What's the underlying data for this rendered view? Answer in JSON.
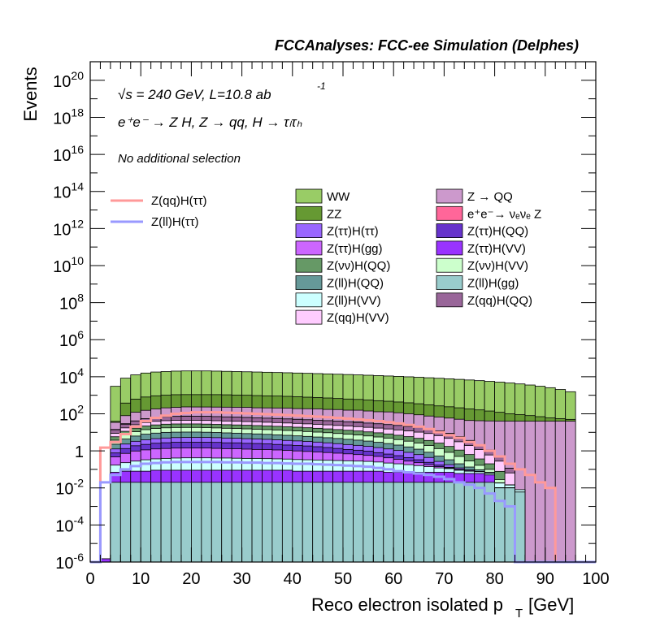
{
  "chart_data": {
    "type": "histogram",
    "title": "FCCAnalyses: FCC-ee Simulation (Delphes)",
    "annotations": {
      "energy": "√s = 240 GeV, L=10.8 ab",
      "energy_sup": "-1",
      "process": "e⁺e⁻ → Z H, Z → qq, H → τₗτₕ",
      "selection": "No additional selection"
    },
    "xlabel": "Reco electron isolated p",
    "xlabel_sub": "T",
    "xlabel_unit": "[GeV]",
    "ylabel": "Events",
    "xlim": [
      0,
      100
    ],
    "ylim": [
      1e-06,
      1e+21
    ],
    "yscale": "log",
    "x_ticks": [
      "0",
      "10",
      "20",
      "30",
      "40",
      "50",
      "60",
      "70",
      "80",
      "90",
      "100"
    ],
    "y_ticks": [
      {
        "base": "10",
        "exp": "20",
        "value": 1e+20
      },
      {
        "base": "10",
        "exp": "18",
        "value": 1e+18
      },
      {
        "base": "10",
        "exp": "16",
        "value": 1e+16
      },
      {
        "base": "10",
        "exp": "14",
        "value": 100000000000000.0
      },
      {
        "base": "10",
        "exp": "12",
        "value": 1000000000000.0
      },
      {
        "base": "10",
        "exp": "10",
        "value": 10000000000.0
      },
      {
        "base": "10",
        "exp": "8",
        "value": 100000000.0
      },
      {
        "base": "10",
        "exp": "6",
        "value": 1000000.0
      },
      {
        "base": "10",
        "exp": "4",
        "value": 10000.0
      },
      {
        "base": "10",
        "exp": "2",
        "value": 100.0
      },
      {
        "base": "1",
        "exp": "",
        "value": 1
      },
      {
        "base": "10",
        "exp": "-2",
        "value": 0.01
      },
      {
        "base": "10",
        "exp": "-4",
        "value": 0.0001
      },
      {
        "base": "10",
        "exp": "-6",
        "value": 1e-06
      }
    ],
    "legend_position": "top-right",
    "backgrounds": [
      {
        "name": "WW",
        "color": "#99cc66"
      },
      {
        "name": "Z → QQ",
        "color": "#cc99cc"
      },
      {
        "name": "ZZ",
        "color": "#669933"
      },
      {
        "name": "e⁺e⁻→ νₑνₑ Z",
        "color": "#ff6699"
      },
      {
        "name": "Z(ττ)H(ττ)",
        "color": "#9966ff"
      },
      {
        "name": "Z(ττ)H(QQ)",
        "color": "#6633cc"
      },
      {
        "name": "Z(ττ)H(gg)",
        "color": "#cc66ff"
      },
      {
        "name": "Z(ττ)H(VV)",
        "color": "#9933ff"
      },
      {
        "name": "Z(νν)H(QQ)",
        "color": "#669966"
      },
      {
        "name": "Z(νν)H(VV)",
        "color": "#ccffcc"
      },
      {
        "name": "Z(ll)H(QQ)",
        "color": "#669999"
      },
      {
        "name": "Z(ll)H(gg)",
        "color": "#99cccc"
      },
      {
        "name": "Z(ll)H(VV)",
        "color": "#ccffff"
      },
      {
        "name": "Z(qq)H(QQ)",
        "color": "#996699"
      },
      {
        "name": "Z(qq)H(VV)",
        "color": "#ffccff"
      }
    ],
    "signals": [
      {
        "name": "Z(qq)H(ττ)",
        "color": "#ff9999"
      },
      {
        "name": "Z(ll)H(ττ)",
        "color": "#9999ff"
      }
    ],
    "bin_width": 2,
    "bin_edges_start": 0,
    "stacks": [
      {
        "name": "Z(ll)H(gg)",
        "color": "#99cccc",
        "values": [
          0,
          5e-07,
          0.02,
          0.02,
          0.02,
          0.02,
          0.02,
          0.02,
          0.02,
          0.02,
          0.02,
          0.02,
          0.02,
          0.02,
          0.02,
          0.02,
          0.02,
          0.02,
          0.02,
          0.02,
          0.02,
          0.02,
          0.02,
          0.02,
          0.02,
          0.02,
          0.02,
          0.02,
          0.02,
          0.02,
          0.02,
          0.02,
          0.02,
          0.02,
          0.02,
          0.02,
          0.02,
          0.02,
          0.02,
          0.02,
          0.01,
          0.01,
          0.006,
          0,
          0,
          0,
          0,
          0,
          0,
          0
        ]
      },
      {
        "name": "Z(ττ)H(VV)",
        "color": "#9933ff",
        "values": [
          0,
          1e-06,
          0.05,
          0.06,
          0.06,
          0.06,
          0.07,
          0.07,
          0.07,
          0.07,
          0.07,
          0.07,
          0.07,
          0.07,
          0.07,
          0.07,
          0.07,
          0.07,
          0.07,
          0.07,
          0.06,
          0.06,
          0.06,
          0.06,
          0.06,
          0.06,
          0.06,
          0.06,
          0.06,
          0.05,
          0.05,
          0.05,
          0.05,
          0.05,
          0.05,
          0.05,
          0.04,
          0.04,
          0.04,
          0.03,
          0.0003,
          0.0003,
          0,
          0,
          0,
          0,
          0,
          0,
          0,
          0
        ]
      },
      {
        "name": "Z(ll)H(VV)",
        "color": "#ccffff",
        "values": [
          0,
          0,
          0.1,
          0.15,
          0.2,
          0.25,
          0.28,
          0.3,
          0.32,
          0.33,
          0.33,
          0.33,
          0.32,
          0.32,
          0.31,
          0.3,
          0.3,
          0.29,
          0.28,
          0.27,
          0.26,
          0.25,
          0.24,
          0.23,
          0.22,
          0.21,
          0.2,
          0.19,
          0.17,
          0.15,
          0.13,
          0.11,
          0.09,
          0.07,
          0.05,
          0.04,
          0.03,
          0.02,
          0.015,
          0.01,
          0.008,
          0.004,
          0.002,
          0,
          0,
          0,
          0,
          0,
          0,
          0
        ]
      },
      {
        "name": "Z(ττ)H(gg)",
        "color": "#cc66ff",
        "values": [
          0,
          0,
          0.3,
          0.5,
          0.7,
          0.8,
          0.9,
          0.95,
          1.0,
          1.0,
          1.0,
          1.0,
          0.95,
          0.9,
          0.9,
          0.85,
          0.8,
          0.8,
          0.75,
          0.7,
          0.65,
          0.6,
          0.55,
          0.5,
          0.45,
          0.4,
          0.35,
          0.3,
          0.25,
          0.2,
          0.15,
          0.1,
          0.07,
          0.04,
          0.02,
          0.01,
          0.005,
          0.002,
          0.001,
          0,
          0,
          0,
          0,
          0,
          0,
          0,
          0,
          0,
          0,
          0
        ]
      },
      {
        "name": "Z(ττ)H(QQ)",
        "color": "#6633cc",
        "values": [
          0,
          0,
          0.3,
          0.6,
          0.9,
          1.1,
          1.3,
          1.4,
          1.5,
          1.5,
          1.5,
          1.5,
          1.5,
          1.4,
          1.4,
          1.3,
          1.3,
          1.2,
          1.1,
          1.0,
          0.95,
          0.9,
          0.8,
          0.7,
          0.6,
          0.5,
          0.45,
          0.4,
          0.3,
          0.25,
          0.2,
          0.15,
          0.1,
          0.06,
          0.03,
          0.01,
          0.005,
          0.002,
          0,
          0,
          0,
          0,
          0,
          0,
          0,
          0,
          0,
          0,
          0,
          0
        ]
      },
      {
        "name": "Z(ττ)H(ττ)",
        "color": "#9966ff",
        "values": [
          0,
          0,
          0.5,
          1.0,
          1.4,
          1.7,
          2.0,
          2.2,
          2.3,
          2.4,
          2.4,
          2.4,
          2.3,
          2.2,
          2.1,
          2.0,
          1.9,
          1.8,
          1.7,
          1.6,
          1.5,
          1.4,
          1.3,
          1.2,
          1.1,
          1.0,
          0.9,
          0.8,
          0.7,
          0.6,
          0.5,
          0.4,
          0.3,
          0.2,
          0.1,
          0.05,
          0.02,
          0.01,
          0,
          0,
          0,
          0,
          0,
          0,
          0,
          0,
          0,
          0,
          0,
          0
        ]
      },
      {
        "name": "Z(ll)H(QQ)",
        "color": "#669999",
        "values": [
          0,
          0,
          1.0,
          2.0,
          3.0,
          4.0,
          4.5,
          5.0,
          5.0,
          5.0,
          5.0,
          4.8,
          4.6,
          4.4,
          4.2,
          4.0,
          3.8,
          3.6,
          3.4,
          3.2,
          3.0,
          2.8,
          2.6,
          2.4,
          2.2,
          2.0,
          1.8,
          1.6,
          1.4,
          1.2,
          1.0,
          0.8,
          0.6,
          0.4,
          0.25,
          0.15,
          0.08,
          0.04,
          0.02,
          0.01,
          0,
          0,
          0,
          0,
          0,
          0,
          0,
          0,
          0,
          0
        ]
      },
      {
        "name": "Z(νν)H(VV)",
        "color": "#ccffcc",
        "values": [
          0,
          0,
          1.5,
          3,
          4.5,
          6,
          7,
          7.5,
          8,
          8,
          8,
          7.8,
          7.5,
          7.2,
          7.0,
          6.8,
          6.5,
          6.2,
          6.0,
          5.7,
          5.4,
          5.0,
          4.7,
          4.4,
          4.0,
          3.7,
          3.4,
          3.0,
          2.7,
          2.4,
          2.0,
          1.7,
          1.4,
          1.1,
          0.8,
          0.5,
          0.3,
          0.15,
          0.07,
          0.03,
          0.01,
          0,
          0,
          0,
          0,
          0,
          0,
          0,
          0,
          0
        ]
      },
      {
        "name": "Z(νν)H(QQ)",
        "color": "#669966",
        "values": [
          0,
          0,
          2,
          4,
          6,
          8,
          9,
          10,
          10,
          10,
          10,
          9.8,
          9.5,
          9.2,
          9.0,
          8.7,
          8.4,
          8.0,
          7.7,
          7.3,
          7.0,
          6.6,
          6.2,
          5.8,
          5.4,
          5.0,
          4.6,
          4.2,
          3.8,
          3.3,
          2.9,
          2.5,
          2.1,
          1.7,
          1.3,
          0.9,
          0.6,
          0.35,
          0.2,
          0.1,
          0.05,
          0,
          0,
          0,
          0,
          0,
          0,
          0,
          0,
          0
        ]
      },
      {
        "name": "Z(qq)H(VV)",
        "color": "#ffccff",
        "values": [
          0,
          0,
          3,
          6,
          9,
          12,
          14,
          15,
          16,
          16,
          16,
          16,
          15.5,
          15,
          14.5,
          14,
          13.5,
          13,
          12.5,
          12,
          11.5,
          11,
          10.5,
          10,
          9.5,
          9,
          8.5,
          8,
          7.5,
          7,
          6.5,
          6,
          5.5,
          5,
          4,
          3,
          2,
          1.3,
          0.8,
          0.4,
          0.2,
          0.05,
          0,
          0,
          0,
          0,
          0,
          0,
          0,
          0
        ]
      },
      {
        "name": "Z(qq)H(QQ)",
        "color": "#996699",
        "values": [
          0,
          0,
          5,
          10,
          15,
          20,
          24,
          27,
          28,
          29,
          29,
          29,
          28,
          27,
          26,
          25,
          24,
          23,
          22,
          21,
          20,
          19,
          18,
          17,
          16,
          15,
          14,
          13,
          12,
          11,
          10,
          9,
          8,
          7,
          5.5,
          4,
          2.7,
          1.7,
          1,
          0.5,
          0.2,
          0.05,
          0,
          0,
          0,
          0,
          0,
          0,
          0,
          0
        ]
      },
      {
        "name": "e⁺e⁻→ νₑνₑ Z",
        "color": "#ff6699",
        "values": [
          0,
          0,
          0.5,
          2,
          0.5,
          0,
          0,
          0,
          0,
          2,
          0,
          0,
          0,
          0,
          0,
          0,
          0,
          0,
          0,
          0,
          0,
          0,
          0,
          0,
          0,
          0,
          2,
          0,
          0,
          0,
          0,
          0,
          0,
          0,
          0,
          0,
          0,
          0,
          0,
          0,
          0,
          0,
          0,
          0,
          0,
          0,
          0,
          0,
          0,
          0
        ]
      },
      {
        "name": "Z → QQ",
        "color": "#cc99cc",
        "values": [
          0,
          0,
          20,
          50,
          80,
          100,
          120,
          140,
          150,
          160,
          160,
          160,
          160,
          160,
          160,
          160,
          150,
          150,
          150,
          150,
          140,
          140,
          140,
          130,
          130,
          120,
          120,
          110,
          100,
          100,
          90,
          80,
          70,
          60,
          55,
          50,
          45,
          40,
          40,
          40,
          40,
          40,
          40,
          40,
          40,
          40,
          40,
          40,
          0,
          0
        ]
      },
      {
        "name": "ZZ",
        "color": "#669933",
        "values": [
          0,
          0,
          5,
          300,
          500,
          650,
          750,
          800,
          850,
          850,
          850,
          850,
          850,
          830,
          800,
          780,
          750,
          720,
          700,
          670,
          640,
          600,
          570,
          540,
          500,
          470,
          440,
          410,
          380,
          350,
          320,
          290,
          260,
          230,
          200,
          180,
          160,
          140,
          120,
          100,
          80,
          60,
          50,
          40,
          30,
          20,
          15,
          10,
          0,
          0
        ]
      },
      {
        "name": "WW",
        "color": "#99cc66",
        "values": [
          0,
          0,
          3000,
          8000,
          12000,
          15000,
          17000,
          18000,
          19000,
          19500,
          19500,
          19500,
          19000,
          18500,
          18000,
          17500,
          17000,
          16500,
          16000,
          15500,
          15000,
          14500,
          14000,
          13500,
          13000,
          12500,
          12000,
          11500,
          11000,
          10500,
          10000,
          9500,
          9000,
          8500,
          8000,
          7500,
          7000,
          6500,
          6000,
          5500,
          5000,
          4500,
          4000,
          3500,
          3000,
          2500,
          2000,
          1500,
          0,
          0
        ]
      }
    ],
    "signal_lines": [
      {
        "name": "Z(qq)H(ττ)",
        "color": "#ff9999",
        "values": [
          0,
          1.5,
          3,
          8,
          20,
          40,
          60,
          80,
          100,
          110,
          120,
          120,
          120,
          115,
          110,
          105,
          100,
          95,
          90,
          85,
          80,
          75,
          70,
          65,
          60,
          55,
          50,
          45,
          40,
          35,
          30,
          25,
          20,
          15,
          10,
          7,
          5,
          3,
          2,
          1,
          0.5,
          0.2,
          0.1,
          0.05,
          0.02,
          0.01,
          0,
          0,
          0,
          0
        ]
      },
      {
        "name": "Z(ll)H(ττ)",
        "color": "#9999ff",
        "values": [
          0,
          0.02,
          0.05,
          0.1,
          0.15,
          0.2,
          0.22,
          0.24,
          0.25,
          0.25,
          0.25,
          0.25,
          0.25,
          0.24,
          0.24,
          0.23,
          0.23,
          0.22,
          0.22,
          0.21,
          0.2,
          0.2,
          0.19,
          0.18,
          0.17,
          0.16,
          0.15,
          0.14,
          0.12,
          0.1,
          0.08,
          0.07,
          0.06,
          0.05,
          0.04,
          0.03,
          0.02,
          0.015,
          0.01,
          0.005,
          0.002,
          0.001,
          0,
          0,
          0,
          0,
          0,
          0,
          0,
          0
        ]
      }
    ]
  }
}
